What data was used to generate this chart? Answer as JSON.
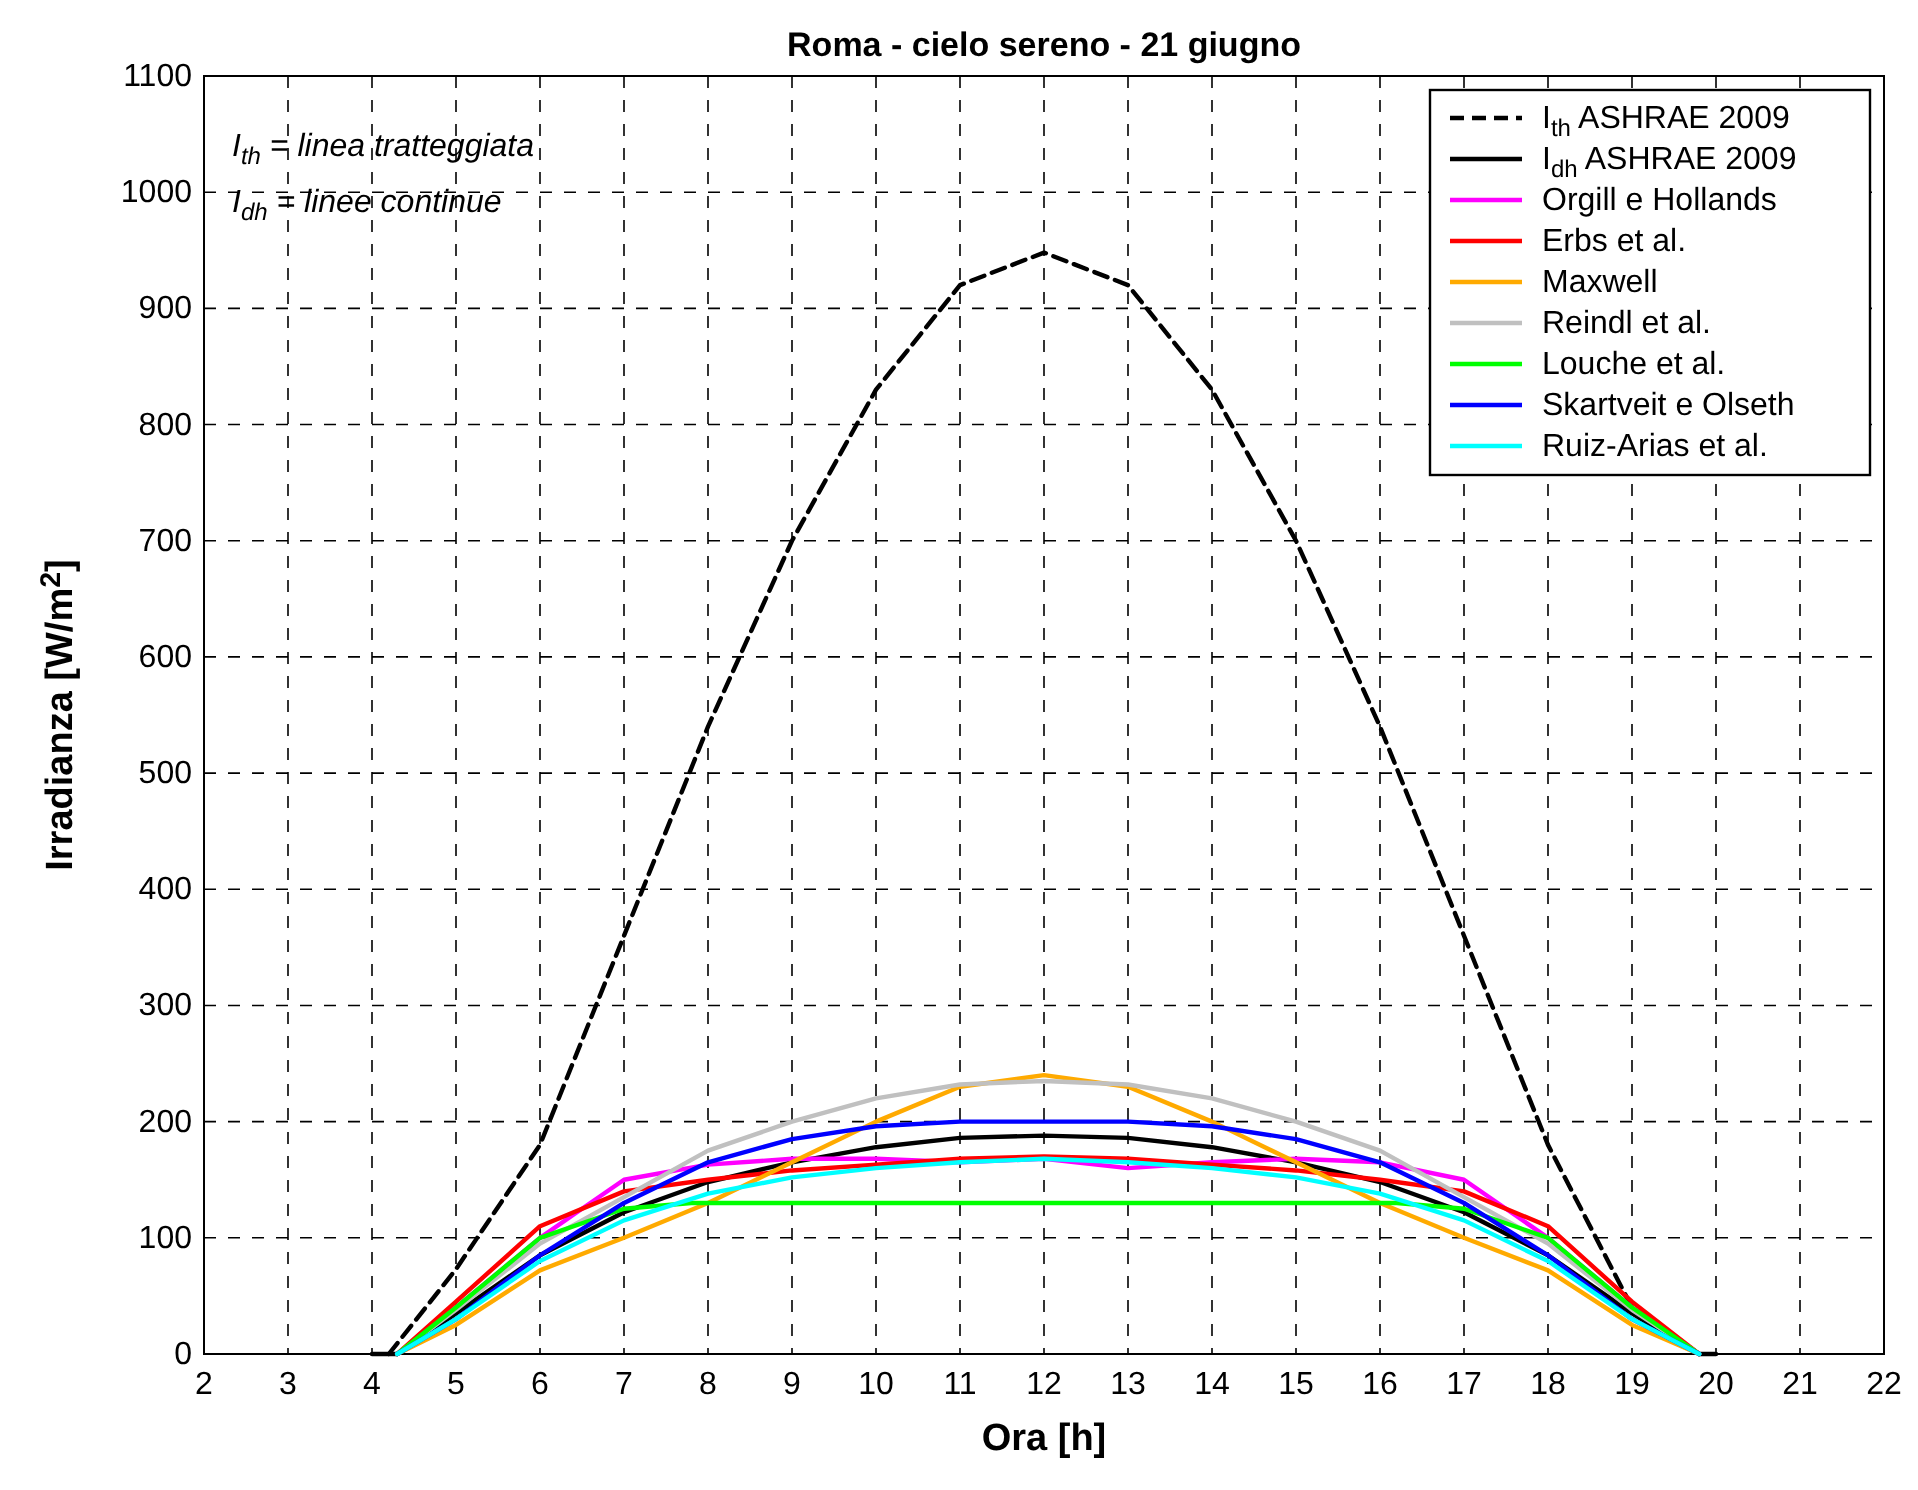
{
  "chart_data": {
    "type": "line",
    "title": "Roma - cielo sereno - 21 giugno",
    "xlabel": "Ora [h]",
    "ylabel": "Irradianza [W/m$^{2}$]",
    "xlim": [
      2,
      22
    ],
    "xticks": [
      2,
      3,
      4,
      5,
      6,
      7,
      8,
      9,
      10,
      11,
      12,
      13,
      14,
      15,
      16,
      17,
      18,
      19,
      20,
      21,
      22
    ],
    "ylim": [
      0,
      1100
    ],
    "yticks": [
      0,
      100,
      200,
      300,
      400,
      500,
      600,
      700,
      800,
      900,
      1000,
      1100
    ],
    "grid": true,
    "legend": "top right",
    "marker": "none",
    "annotations": [
      "I$_{th}$ = linea tratteggiata",
      "I$_{dh}$ = linee continue"
    ],
    "series": [
      {
        "name": "I$_{th}$ ASHRAE 2009",
        "color": "#000000",
        "line_style": "dashed",
        "x": [
          4.2,
          5,
          6,
          7,
          8,
          9,
          10,
          11,
          12,
          13,
          14,
          15,
          16,
          17,
          18,
          19,
          19.8
        ],
        "values": [
          0,
          73,
          180,
          360,
          540,
          700,
          830,
          920,
          948,
          920,
          830,
          700,
          540,
          360,
          180,
          40,
          0
        ]
      },
      {
        "name": "I$_{dh}$ ASHRAE 2009",
        "color": "#000000",
        "line_style": "solid",
        "x": [
          4,
          4.3,
          5,
          6,
          7,
          8,
          9,
          10,
          11,
          12,
          13,
          14,
          15,
          16,
          17,
          18,
          19,
          19.8,
          20
        ],
        "values": [
          0,
          0,
          35,
          85,
          122,
          148,
          165,
          178,
          186,
          188,
          186,
          178,
          165,
          148,
          122,
          85,
          35,
          0,
          0
        ]
      },
      {
        "name": "Orgill e Hollands",
        "color": "#ff00ff",
        "line_style": "solid",
        "x": [
          4.3,
          5,
          6,
          6.5,
          7,
          8,
          9,
          10,
          11,
          12,
          13,
          14,
          15,
          16,
          17,
          18,
          19,
          19.8
        ],
        "values": [
          0,
          40,
          100,
          125,
          150,
          163,
          168,
          168,
          165,
          168,
          160,
          165,
          168,
          165,
          150,
          100,
          40,
          0
        ]
      },
      {
        "name": "Erbs et al.",
        "color": "#ff0000",
        "line_style": "solid",
        "x": [
          4.3,
          5,
          6,
          7,
          8,
          9,
          10,
          11,
          12,
          13,
          14,
          15,
          16,
          17,
          18,
          19,
          19.8
        ],
        "values": [
          0,
          45,
          110,
          140,
          150,
          158,
          163,
          168,
          170,
          168,
          163,
          158,
          150,
          140,
          110,
          45,
          0
        ]
      },
      {
        "name": "Maxwell",
        "color": "#ffaa00",
        "line_style": "solid",
        "x": [
          4.3,
          5,
          6,
          7,
          8,
          9,
          10,
          11,
          12,
          13,
          14,
          15,
          16,
          17,
          18,
          19,
          19.8
        ],
        "values": [
          0,
          25,
          72,
          100,
          130,
          165,
          200,
          230,
          240,
          230,
          200,
          165,
          130,
          100,
          72,
          25,
          0
        ]
      },
      {
        "name": "Reindl et al.",
        "color": "#c0c0c0",
        "line_style": "solid",
        "x": [
          4.3,
          5,
          6,
          7,
          8,
          9,
          10,
          11,
          12,
          13,
          14,
          15,
          16,
          17,
          18,
          19,
          19.8
        ],
        "values": [
          0,
          38,
          95,
          135,
          175,
          200,
          220,
          232,
          235,
          232,
          220,
          200,
          175,
          135,
          95,
          38,
          0
        ]
      },
      {
        "name": "Louche et al.",
        "color": "#00ff00",
        "line_style": "solid",
        "x": [
          4.3,
          5,
          6,
          7,
          7.8,
          16.2,
          17,
          18,
          19,
          19.8
        ],
        "values": [
          0,
          40,
          100,
          125,
          130,
          130,
          125,
          100,
          40,
          0
        ]
      },
      {
        "name": "Skartveit e Olseth",
        "color": "#0000ff",
        "line_style": "solid",
        "x": [
          4.3,
          5,
          6,
          7,
          8,
          9,
          10,
          11,
          12,
          13,
          14,
          15,
          16,
          17,
          18,
          19,
          19.8
        ],
        "values": [
          0,
          30,
          85,
          130,
          165,
          185,
          196,
          200,
          200,
          200,
          196,
          185,
          165,
          130,
          85,
          30,
          0
        ]
      },
      {
        "name": "Ruiz-Arias et al.",
        "color": "#00ffff",
        "line_style": "solid",
        "x": [
          4.3,
          5,
          6,
          7,
          8,
          9,
          10,
          11,
          12,
          13,
          14,
          15,
          16,
          17,
          18,
          19,
          19.8
        ],
        "values": [
          0,
          30,
          80,
          115,
          138,
          152,
          160,
          165,
          168,
          165,
          160,
          152,
          138,
          115,
          80,
          30,
          0
        ]
      }
    ]
  }
}
